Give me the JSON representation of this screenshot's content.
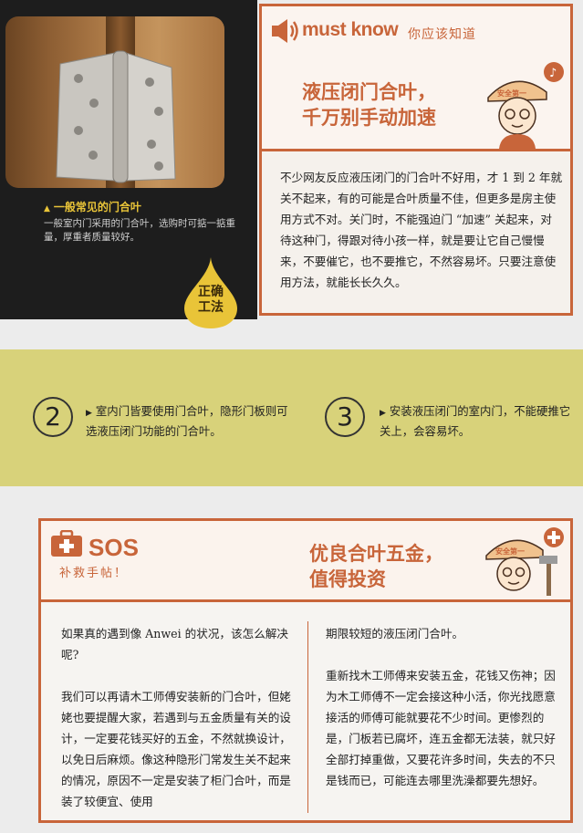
{
  "photo_panel": {
    "caption_title": "一般常见的门合叶",
    "caption_text": "一般室内门采用的门合叶，选购时可掂一掂重量，厚重者质量较好。",
    "tag_line1": "正确",
    "tag_line2": "工法",
    "colors": {
      "panel": "#1d1d1d",
      "caption_title": "#e9c438",
      "tag": "#e9c438"
    }
  },
  "must_know": {
    "label": "must know",
    "subtitle": "你应该知道",
    "title_line1": "液压闭门合叶，",
    "title_line2": "千万别手动加速",
    "body": "不少网友反应液压闭门的门合叶不好用，才 1 到 2 年就关不起来，有的可能是合叶质量不佳，但更多是房主使用方式不对。关门时，不能强迫门 “加速” 关起来，对待这种门，得跟对待小孩一样，就是要让它自己慢慢来，不要催它，也不要推它，不然容易坏。只要注意使用方法，就能长长久久。",
    "helmet_text": "安全第一",
    "accent": "#c8653a"
  },
  "tips": [
    {
      "number": "2",
      "text": "室内门皆要使用门合叶，隐形门板则可选液压闭门功能的门合叶。"
    },
    {
      "number": "3",
      "text": "安装液压闭门的室内门，不能硬推它关上，会容易坏。"
    }
  ],
  "sos": {
    "label": "SOS",
    "subtitle": "补救手帖！",
    "title_line1": "优良合叶五金，",
    "title_line2": "值得投资",
    "helmet_text": "安全第一",
    "left_paragraphs": [
      "如果真的遇到像 Anwei 的状况，该怎么解决呢?",
      "我们可以再请木工师傅安装新的门合叶，但姥姥也要提醒大家，若遇到与五金质量有关的设计，一定要花钱买好的五金，不然就换设计，以免日后麻烦。像这种隐形门常发生关不起来的情况，原因不一定是安装了柜门合叶，而是装了较便宜、使用"
    ],
    "right_paragraphs": [
      "期限较短的液压闭门合叶。",
      "重新找木工师傅来安装五金，花钱又伤神；因为木工师傅不一定会接这种小活，你光找愿意接活的师傅可能就要花不少时间。更惨烈的是，门板若已腐坏，连五金都无法装，就只好全部打掉重做，又要花许多时间，失去的不只是钱而已，可能连去哪里洗澡都要先想好。"
    ]
  }
}
